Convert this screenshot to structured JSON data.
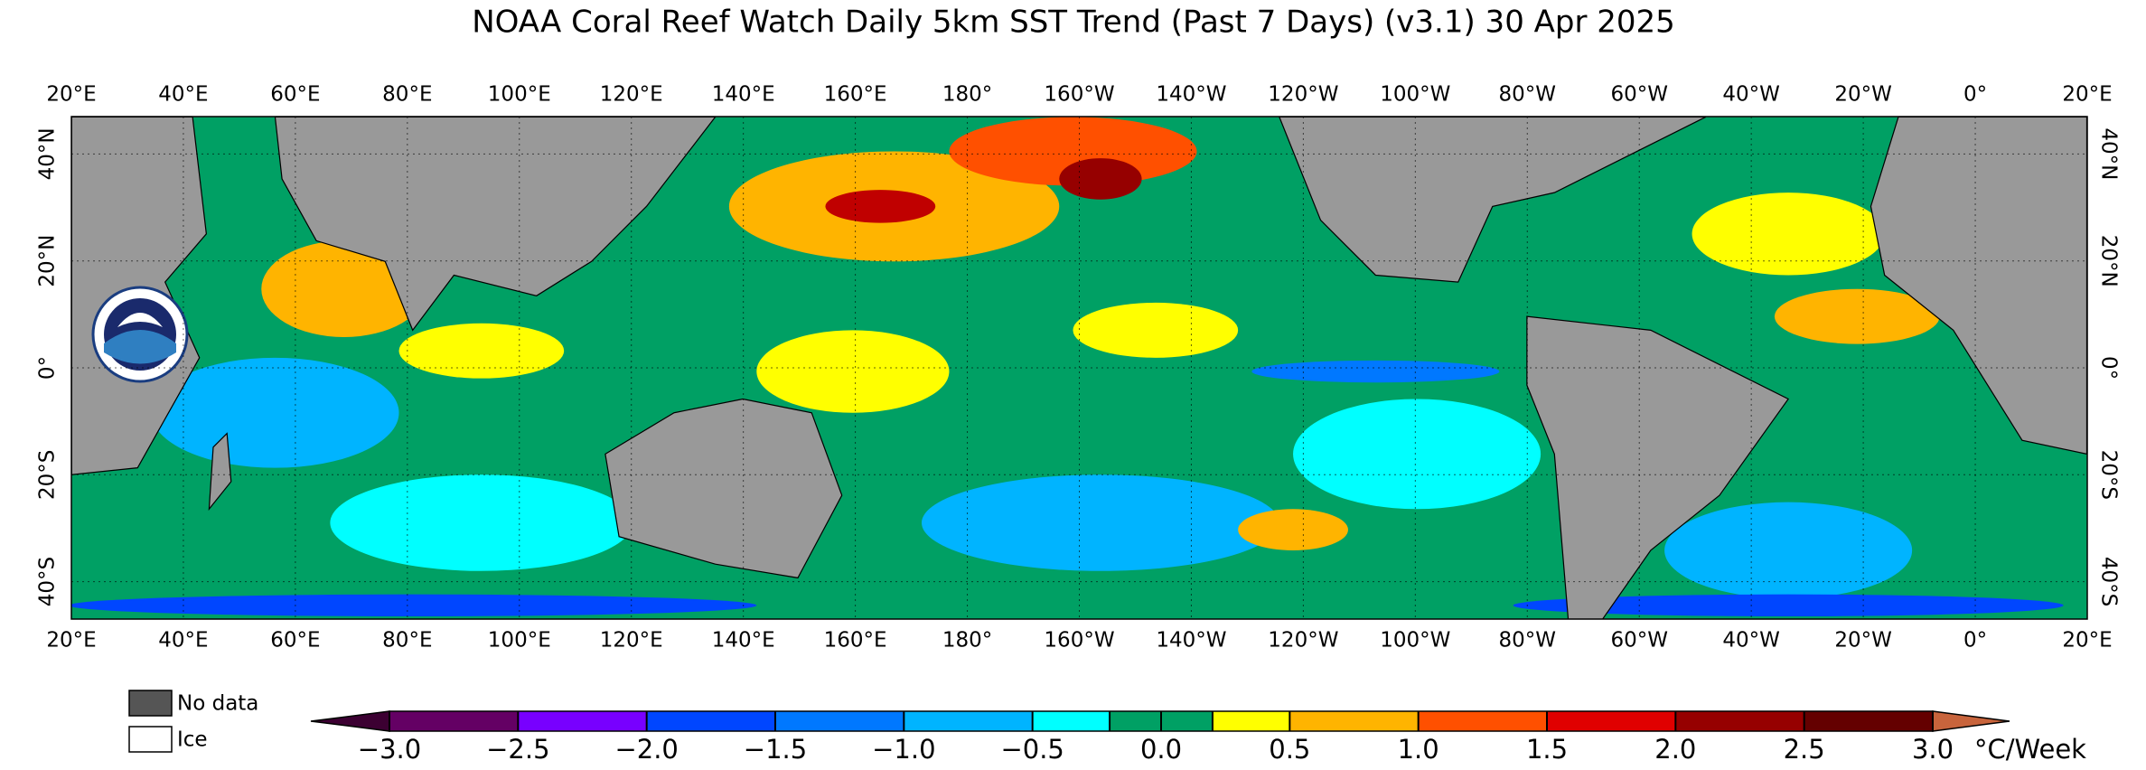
{
  "chart_data": {
    "type": "map",
    "title": "NOAA Coral Reef Watch Daily 5km SST Trend (Past 7 Days)  (v3.1)   30 Apr 2025",
    "xlim": [
      20,
      380
    ],
    "ylim": [
      -47,
      47
    ],
    "xticks": [
      {
        "value": 20,
        "label": "20°E"
      },
      {
        "value": 40,
        "label": "40°E"
      },
      {
        "value": 60,
        "label": "60°E"
      },
      {
        "value": 80,
        "label": "80°E"
      },
      {
        "value": 100,
        "label": "100°E"
      },
      {
        "value": 120,
        "label": "120°E"
      },
      {
        "value": 140,
        "label": "140°E"
      },
      {
        "value": 160,
        "label": "160°E"
      },
      {
        "value": 180,
        "label": "180°"
      },
      {
        "value": 200,
        "label": "160°W"
      },
      {
        "value": 220,
        "label": "140°W"
      },
      {
        "value": 240,
        "label": "120°W"
      },
      {
        "value": 260,
        "label": "100°W"
      },
      {
        "value": 280,
        "label": "80°W"
      },
      {
        "value": 300,
        "label": "60°W"
      },
      {
        "value": 320,
        "label": "40°W"
      },
      {
        "value": 340,
        "label": "20°W"
      },
      {
        "value": 360,
        "label": "0°"
      },
      {
        "value": 380,
        "label": "20°E"
      }
    ],
    "yticks": [
      {
        "value": 40,
        "label": "40°N"
      },
      {
        "value": 20,
        "label": "20°N"
      },
      {
        "value": 0,
        "label": "0°"
      },
      {
        "value": -20,
        "label": "20°S"
      },
      {
        "value": -40,
        "label": "40°S"
      }
    ],
    "grid": true,
    "legend": [
      {
        "name": "No data",
        "color": "#555555"
      },
      {
        "name": "Ice",
        "color": "#ffffff"
      }
    ],
    "colorbar": {
      "label": "°C/Week",
      "lim": [
        -3,
        3
      ],
      "bounds": [
        -3,
        -2.5,
        -2,
        -1.5,
        -1,
        -0.5,
        -0.2,
        0,
        0.2,
        0.5,
        1,
        1.5,
        2,
        2.5,
        3
      ],
      "colors": [
        "#640064",
        "#7800ff",
        "#0046ff",
        "#0078ff",
        "#00b4ff",
        "#00ffff",
        "#00a064",
        "#00a064",
        "#ffff00",
        "#ffb400",
        "#ff5000",
        "#e00000",
        "#960000",
        "#640000"
      ],
      "under_color": "#3c0032",
      "over_color": "#c8643c",
      "ticks": [
        {
          "value": -3,
          "label": "−3.0"
        },
        {
          "value": -2.5,
          "label": "−2.5"
        },
        {
          "value": -2,
          "label": "−2.0"
        },
        {
          "value": -1.5,
          "label": "−1.5"
        },
        {
          "value": -1,
          "label": "−1.0"
        },
        {
          "value": -0.5,
          "label": "−0.5"
        },
        {
          "value": 0,
          "label": "0.0"
        },
        {
          "value": 0.5,
          "label": "0.5"
        },
        {
          "value": 1,
          "label": "1.0"
        },
        {
          "value": 1.5,
          "label": "1.5"
        },
        {
          "value": 2,
          "label": "2.0"
        },
        {
          "value": 2.5,
          "label": "2.5"
        },
        {
          "value": 3,
          "label": "3.0"
        }
      ]
    }
  }
}
